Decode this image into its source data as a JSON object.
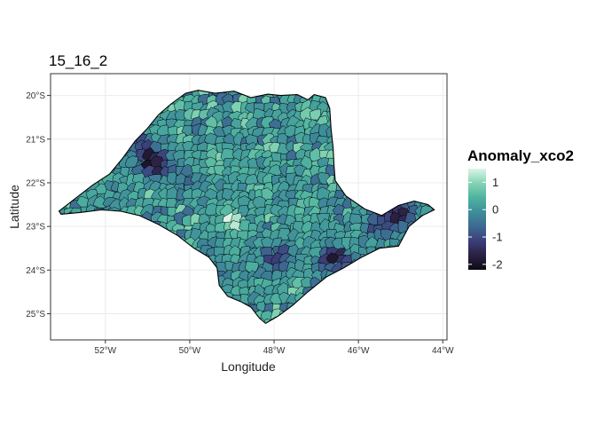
{
  "chart_data": {
    "type": "choropleth map",
    "title": "15_16_2",
    "xlabel": "Longitude",
    "ylabel": "Latitude",
    "xlim": [
      -53.3,
      -43.9
    ],
    "ylim": [
      -25.6,
      -19.5
    ],
    "x_ticks": [
      -52,
      -50,
      -48,
      -46,
      -44
    ],
    "x_tick_labels": [
      "52°W",
      "50°W",
      "48°W",
      "46°W",
      "44°W"
    ],
    "y_ticks": [
      -20,
      -21,
      -22,
      -23,
      -24,
      -25
    ],
    "y_tick_labels": [
      "20°S",
      "21°S",
      "22°S",
      "23°S",
      "24°S",
      "25°S"
    ],
    "grid": true,
    "legend": {
      "title": "Anomaly_xco2",
      "position": "right",
      "ticks": [
        1,
        0,
        -1,
        -2
      ],
      "tick_labels": [
        "1",
        "0",
        "-1",
        "-2"
      ],
      "range": [
        -2.2,
        1.5
      ],
      "colors": [
        "#0b0a12",
        "#2b2142",
        "#3b3f7a",
        "#3d6a92",
        "#3e8e9a",
        "#4fb3a0",
        "#85d5b4",
        "#dcf5e9"
      ]
    },
    "fill_levels": [
      {
        "value": -0.8,
        "color": "#3f4d88"
      },
      {
        "value": 0.0,
        "color": "#3b7c95"
      },
      {
        "value": 0.3,
        "color": "#3f8b98"
      },
      {
        "value": 0.6,
        "color": "#4aa39d"
      },
      {
        "value": 0.9,
        "color": "#5cbda4"
      },
      {
        "value": 1.3,
        "color": "#9adfc0"
      }
    ],
    "anomaly_zones": [
      {
        "lon": -50.8,
        "lat": -21.6,
        "value": -1.9
      },
      {
        "lon": -51.2,
        "lat": -21.1,
        "value": -1.2
      },
      {
        "lon": -46.55,
        "lat": -23.75,
        "value": -2.1
      },
      {
        "lon": -47.9,
        "lat": -23.75,
        "value": -1.4
      },
      {
        "lon": -44.95,
        "lat": -22.7,
        "value": -1.7
      },
      {
        "lon": -49.0,
        "lat": -22.9,
        "value": 1.3
      },
      {
        "lon": -47.0,
        "lat": -20.5,
        "value": 0.9
      },
      {
        "lon": -45.5,
        "lat": -23.0,
        "value": -1.0
      },
      {
        "lon": -50.0,
        "lat": -22.0,
        "value": -0.5
      },
      {
        "lon": -49.3,
        "lat": -21.5,
        "value": 0.6
      },
      {
        "lon": -48.3,
        "lat": -22.1,
        "value": 0.6
      },
      {
        "lon": -47.2,
        "lat": -22.6,
        "value": 0.3
      },
      {
        "lon": -48.5,
        "lat": -24.2,
        "value": 0.2
      },
      {
        "lon": -49.4,
        "lat": -24.0,
        "value": -0.5
      },
      {
        "lon": -52.0,
        "lat": -22.3,
        "value": 0.0
      }
    ]
  }
}
